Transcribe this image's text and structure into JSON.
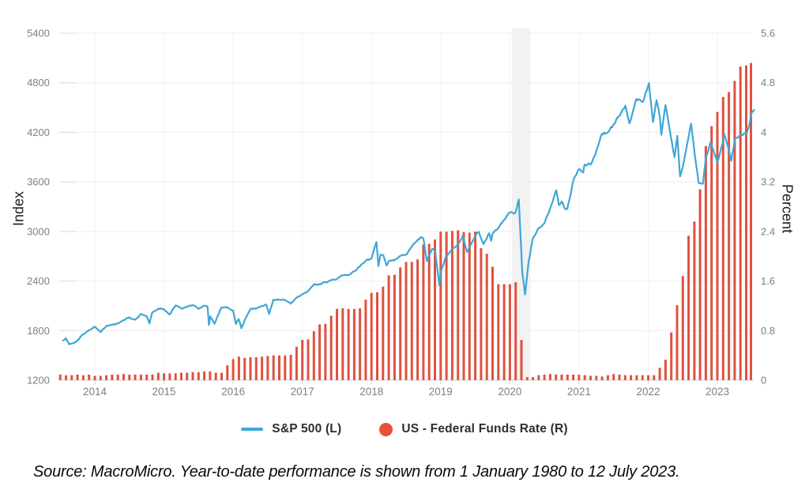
{
  "chart_data": {
    "type": "combo",
    "x_axis": {
      "tick_labels": [
        "2014",
        "2015",
        "2016",
        "2017",
        "2018",
        "2019",
        "2020",
        "2021",
        "2022",
        "2023"
      ],
      "tick_years": [
        2014,
        2015,
        2016,
        2017,
        2018,
        2019,
        2020,
        2021,
        2022,
        2023
      ],
      "x_range": [
        2013.5,
        2023.58
      ]
    },
    "left_axis": {
      "label": "Index",
      "ticks": [
        5400,
        4800,
        4200,
        3600,
        3000,
        2400,
        1800,
        1200
      ],
      "range": [
        1200,
        5400
      ]
    },
    "right_axis": {
      "label": "Percent",
      "ticks": [
        5.6,
        4.8,
        4,
        3.2,
        2.4,
        1.6,
        0.8,
        0
      ],
      "range": [
        0,
        5.6
      ]
    },
    "recession_band": {
      "from": 2020.03,
      "to": 2020.3
    },
    "series": [
      {
        "name": "S&P 500 (L)",
        "type": "line",
        "axis": "left",
        "color": "#3fa6d6",
        "points": [
          [
            2013.54,
            1680
          ],
          [
            2013.58,
            1709
          ],
          [
            2013.63,
            1633
          ],
          [
            2013.71,
            1655
          ],
          [
            2013.75,
            1682
          ],
          [
            2013.83,
            1757
          ],
          [
            2013.92,
            1806
          ],
          [
            2014.0,
            1848
          ],
          [
            2014.08,
            1783
          ],
          [
            2014.17,
            1859
          ],
          [
            2014.25,
            1872
          ],
          [
            2014.33,
            1884
          ],
          [
            2014.42,
            1924
          ],
          [
            2014.5,
            1960
          ],
          [
            2014.58,
            1931
          ],
          [
            2014.67,
            2003
          ],
          [
            2014.75,
            1972
          ],
          [
            2014.79,
            1886
          ],
          [
            2014.83,
            2018
          ],
          [
            2014.92,
            2068
          ],
          [
            2015.0,
            2059
          ],
          [
            2015.08,
            1995
          ],
          [
            2015.17,
            2105
          ],
          [
            2015.25,
            2068
          ],
          [
            2015.33,
            2086
          ],
          [
            2015.42,
            2107
          ],
          [
            2015.5,
            2063
          ],
          [
            2015.58,
            2104
          ],
          [
            2015.63,
            2091
          ],
          [
            2015.65,
            1868
          ],
          [
            2015.67,
            1972
          ],
          [
            2015.73,
            1882
          ],
          [
            2015.75,
            1920
          ],
          [
            2015.83,
            2079
          ],
          [
            2015.92,
            2080
          ],
          [
            2016.0,
            2044
          ],
          [
            2016.04,
            1880
          ],
          [
            2016.08,
            1940
          ],
          [
            2016.12,
            1829
          ],
          [
            2016.17,
            1932
          ],
          [
            2016.25,
            2060
          ],
          [
            2016.33,
            2065
          ],
          [
            2016.42,
            2097
          ],
          [
            2016.48,
            2113
          ],
          [
            2016.52,
            2001
          ],
          [
            2016.58,
            2174
          ],
          [
            2016.67,
            2171
          ],
          [
            2016.75,
            2168
          ],
          [
            2016.83,
            2126
          ],
          [
            2016.92,
            2199
          ],
          [
            2017.0,
            2239
          ],
          [
            2017.08,
            2279
          ],
          [
            2017.17,
            2364
          ],
          [
            2017.25,
            2363
          ],
          [
            2017.33,
            2384
          ],
          [
            2017.42,
            2412
          ],
          [
            2017.5,
            2423
          ],
          [
            2017.58,
            2470
          ],
          [
            2017.67,
            2472
          ],
          [
            2017.75,
            2519
          ],
          [
            2017.83,
            2575
          ],
          [
            2017.92,
            2648
          ],
          [
            2018.0,
            2674
          ],
          [
            2018.07,
            2873
          ],
          [
            2018.1,
            2581
          ],
          [
            2018.13,
            2720
          ],
          [
            2018.17,
            2714
          ],
          [
            2018.22,
            2588
          ],
          [
            2018.25,
            2641
          ],
          [
            2018.33,
            2648
          ],
          [
            2018.42,
            2705
          ],
          [
            2018.5,
            2718
          ],
          [
            2018.58,
            2816
          ],
          [
            2018.67,
            2902
          ],
          [
            2018.72,
            2931
          ],
          [
            2018.75,
            2914
          ],
          [
            2018.8,
            2641
          ],
          [
            2018.83,
            2712
          ],
          [
            2018.88,
            2790
          ],
          [
            2018.92,
            2760
          ],
          [
            2018.98,
            2351
          ],
          [
            2019.0,
            2507
          ],
          [
            2019.08,
            2704
          ],
          [
            2019.17,
            2784
          ],
          [
            2019.25,
            2834
          ],
          [
            2019.32,
            2946
          ],
          [
            2019.38,
            2752
          ],
          [
            2019.5,
            2942
          ],
          [
            2019.55,
            2996
          ],
          [
            2019.62,
            2847
          ],
          [
            2019.67,
            2926
          ],
          [
            2019.7,
            2979
          ],
          [
            2019.73,
            2887
          ],
          [
            2019.75,
            2977
          ],
          [
            2019.83,
            3038
          ],
          [
            2019.92,
            3141
          ],
          [
            2020.0,
            3231
          ],
          [
            2020.04,
            3226
          ],
          [
            2020.08,
            3226
          ],
          [
            2020.13,
            3386
          ],
          [
            2020.18,
            2500
          ],
          [
            2020.22,
            2237
          ],
          [
            2020.27,
            2627
          ],
          [
            2020.33,
            2912
          ],
          [
            2020.42,
            3044
          ],
          [
            2020.5,
            3100
          ],
          [
            2020.58,
            3271
          ],
          [
            2020.67,
            3500
          ],
          [
            2020.71,
            3319
          ],
          [
            2020.75,
            3363
          ],
          [
            2020.8,
            3270
          ],
          [
            2020.83,
            3270
          ],
          [
            2020.92,
            3622
          ],
          [
            2021.0,
            3756
          ],
          [
            2021.06,
            3714
          ],
          [
            2021.08,
            3811
          ],
          [
            2021.17,
            3811
          ],
          [
            2021.25,
            3973
          ],
          [
            2021.33,
            4181
          ],
          [
            2021.42,
            4204
          ],
          [
            2021.5,
            4298
          ],
          [
            2021.58,
            4395
          ],
          [
            2021.67,
            4523
          ],
          [
            2021.73,
            4308
          ],
          [
            2021.75,
            4358
          ],
          [
            2021.83,
            4605
          ],
          [
            2021.88,
            4594
          ],
          [
            2021.92,
            4567
          ],
          [
            2022.0,
            4766
          ],
          [
            2022.01,
            4797
          ],
          [
            2022.07,
            4326
          ],
          [
            2022.12,
            4589
          ],
          [
            2022.17,
            4374
          ],
          [
            2022.19,
            4170
          ],
          [
            2022.25,
            4530
          ],
          [
            2022.33,
            4132
          ],
          [
            2022.38,
            3900
          ],
          [
            2022.42,
            4158
          ],
          [
            2022.46,
            3667
          ],
          [
            2022.5,
            3785
          ],
          [
            2022.58,
            4130
          ],
          [
            2022.62,
            4305
          ],
          [
            2022.67,
            3955
          ],
          [
            2022.73,
            3586
          ],
          [
            2022.79,
            3577
          ],
          [
            2022.83,
            3872
          ],
          [
            2022.9,
            4080
          ],
          [
            2022.96,
            3934
          ],
          [
            2023.0,
            3840
          ],
          [
            2023.08,
            4077
          ],
          [
            2023.1,
            4179
          ],
          [
            2023.17,
            3970
          ],
          [
            2023.2,
            3855
          ],
          [
            2023.25,
            4109
          ],
          [
            2023.33,
            4169
          ],
          [
            2023.42,
            4180
          ],
          [
            2023.46,
            4282
          ],
          [
            2023.5,
            4450
          ],
          [
            2023.53,
            4472
          ]
        ]
      },
      {
        "name": "US - Federal Funds Rate (R)",
        "type": "bar",
        "axis": "right",
        "color": "#e05140",
        "start_year": 2013,
        "start_month": 7,
        "monthly_values": [
          0.09,
          0.08,
          0.08,
          0.09,
          0.08,
          0.09,
          0.07,
          0.07,
          0.08,
          0.09,
          0.09,
          0.1,
          0.09,
          0.09,
          0.09,
          0.09,
          0.09,
          0.12,
          0.11,
          0.11,
          0.11,
          0.12,
          0.12,
          0.13,
          0.13,
          0.14,
          0.14,
          0.12,
          0.12,
          0.24,
          0.34,
          0.38,
          0.36,
          0.37,
          0.37,
          0.38,
          0.39,
          0.4,
          0.4,
          0.4,
          0.41,
          0.54,
          0.65,
          0.66,
          0.79,
          0.9,
          0.91,
          1.04,
          1.15,
          1.16,
          1.15,
          1.15,
          1.16,
          1.3,
          1.41,
          1.42,
          1.51,
          1.69,
          1.7,
          1.82,
          1.91,
          1.91,
          1.95,
          2.19,
          2.2,
          2.27,
          2.4,
          2.4,
          2.41,
          2.42,
          2.39,
          2.38,
          2.4,
          2.13,
          2.04,
          1.83,
          1.55,
          1.55,
          1.55,
          1.58,
          0.65,
          0.05,
          0.05,
          0.08,
          0.09,
          0.1,
          0.09,
          0.09,
          0.09,
          0.09,
          0.09,
          0.08,
          0.07,
          0.07,
          0.06,
          0.08,
          0.1,
          0.09,
          0.08,
          0.08,
          0.08,
          0.08,
          0.08,
          0.08,
          0.2,
          0.33,
          0.77,
          1.21,
          1.68,
          2.33,
          2.56,
          3.08,
          3.78,
          4.1,
          4.33,
          4.57,
          4.65,
          4.83,
          5.06,
          5.08,
          5.12
        ]
      }
    ],
    "style": {
      "gridline_color": "#ededed",
      "axis_line_color": "#cfcfcf",
      "tick_label_color": "#7f7f7f",
      "band_color": "#ededed"
    }
  },
  "legend": {
    "items": [
      {
        "label": "S&P 500 (L)",
        "marker": "line",
        "color": "#3fa6d6"
      },
      {
        "label": "US - Federal Funds Rate (R)",
        "marker": "dot",
        "color": "#e8503a"
      }
    ]
  },
  "caption": "Source: MacroMicro. Year-to-date performance is shown from 1 January 1980 to 12 July 2023."
}
